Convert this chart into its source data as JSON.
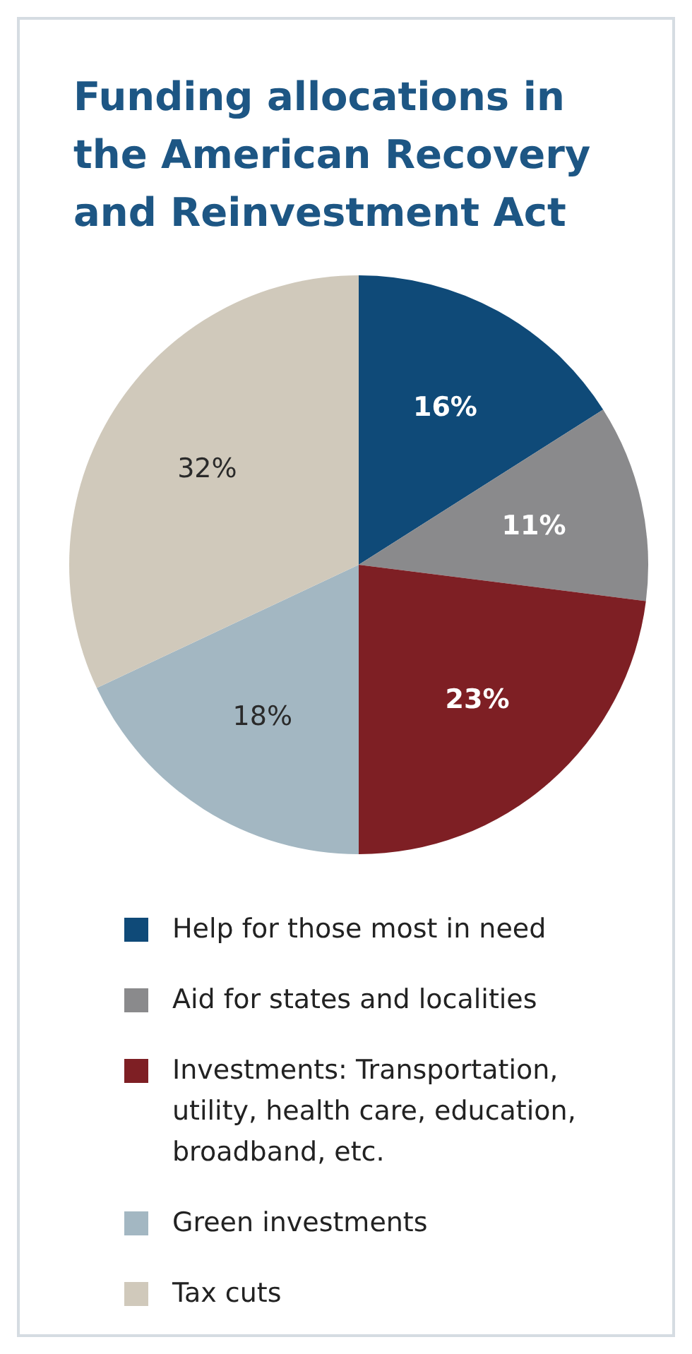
{
  "chart_data": {
    "type": "pie",
    "title": "Funding allocations in the American Recovery and Reinvestment Act",
    "categories": [
      "Help for those most in need",
      "Aid for states and localities",
      "Investments: Transportation, utility, health care, education, broadband, etc.",
      "Green investments",
      "Tax cuts"
    ],
    "values": [
      16,
      11,
      23,
      18,
      32
    ],
    "value_labels": [
      "16%",
      "11%",
      "23%",
      "18%",
      "32%"
    ],
    "colors": [
      "#0f4a78",
      "#8a8a8c",
      "#7e1f24",
      "#a3b7c2",
      "#d0c9bb"
    ],
    "legend": "bottom"
  }
}
